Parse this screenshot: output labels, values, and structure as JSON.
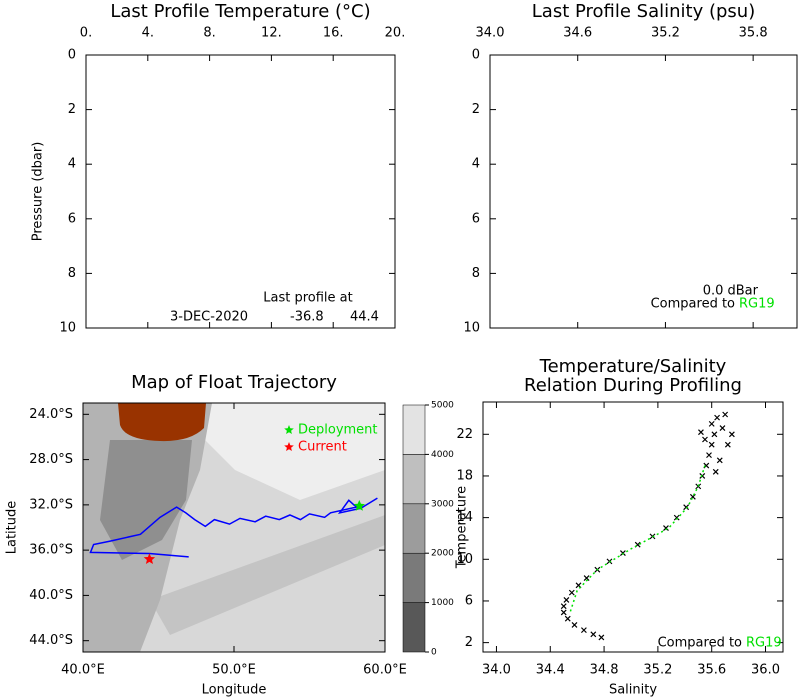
{
  "chart_data": [
    {
      "type": "profile",
      "title": "Last Profile Temperature (°C)",
      "ylabel": "Pressure (dbar)",
      "xlim": [
        0,
        20
      ],
      "xticks": [
        {
          "value": 0,
          "label": "0."
        },
        {
          "value": 4,
          "label": "4."
        },
        {
          "value": 8,
          "label": "8."
        },
        {
          "value": 12,
          "label": "12."
        },
        {
          "value": 16,
          "label": "16."
        },
        {
          "value": 20,
          "label": "20."
        }
      ],
      "ylim": [
        0,
        10
      ],
      "invert_y": true,
      "yticks": [
        0,
        2,
        4,
        6,
        8,
        10
      ],
      "annotations": [
        {
          "text": "Last profile at"
        },
        {
          "text": "3-DEC-2020"
        },
        {
          "text": -36.8
        },
        {
          "text": 44.4
        }
      ]
    },
    {
      "type": "profile",
      "title": "Last Profile Salinity (psu)",
      "xlim": [
        34.0,
        36.1
      ],
      "xticks": [
        {
          "value": 34.0,
          "label": "34.0"
        },
        34.6,
        35.2,
        35.8
      ],
      "ylim": [
        0,
        10
      ],
      "invert_y": true,
      "yticks": [
        0,
        2,
        4,
        6,
        8,
        10
      ],
      "annotations": [
        {
          "text": "0.0 dBar"
        },
        {
          "text": "Compared to"
        },
        {
          "text": "RG19",
          "color": "#00e000"
        }
      ]
    },
    {
      "type": "map",
      "title": "Map of Float Trajectory",
      "xlabel": "Longitude",
      "ylabel": "Latitude",
      "xlim": [
        40,
        60
      ],
      "xticks": [
        {
          "value": 40,
          "label": "40.0°E"
        },
        {
          "value": 50,
          "label": "50.0°E"
        },
        {
          "value": 60,
          "label": "60.0°E"
        }
      ],
      "ylim": [
        -45,
        -23
      ],
      "yticks": [
        {
          "value": -24,
          "label": "24.0°S"
        },
        {
          "value": -28,
          "label": "28.0°S"
        },
        {
          "value": -32,
          "label": "32.0°S"
        },
        {
          "value": -36,
          "label": "36.0°S"
        },
        {
          "value": -40,
          "label": "40.0°S"
        },
        {
          "value": -44,
          "label": "44.0°S"
        }
      ],
      "trajectory": {
        "color": "#0000ff",
        "x": [
          59.5,
          58.4,
          57.0,
          57.6,
          58.1,
          56.4,
          56.0,
          55.0,
          54.4,
          53.7,
          53.0,
          52.1,
          51.4,
          50.4,
          49.7,
          48.7,
          48.1,
          47.4,
          46.8,
          46.2,
          45.1,
          43.8,
          41.8,
          40.7,
          40.5,
          44.4,
          47.0
        ],
        "y": [
          -31.4,
          -32.3,
          -32.7,
          -31.6,
          -32.2,
          -32.7,
          -33.1,
          -32.8,
          -33.3,
          -32.9,
          -33.3,
          -33.0,
          -33.5,
          -33.2,
          -33.7,
          -33.3,
          -33.9,
          -33.3,
          -32.7,
          -32.2,
          -33.1,
          -34.6,
          -35.2,
          -35.5,
          -36.2,
          -36.3,
          -36.6
        ]
      },
      "markers": [
        {
          "name": "Deployment",
          "color": "#00e000",
          "x": 58.3,
          "y": -32.1
        },
        {
          "name": "Current",
          "color": "#ff0000",
          "x": 44.4,
          "y": -36.8
        }
      ],
      "colorbar": {
        "levels": [
          0,
          1000,
          2000,
          3000,
          4000,
          5000
        ],
        "colors": [
          "#585858",
          "#7a7a7a",
          "#9c9c9c",
          "#bfbfbf",
          "#e3e3e3"
        ]
      }
    },
    {
      "type": "scatter",
      "title": [
        "Temperature/Salinity",
        "Relation During Profiling"
      ],
      "xlabel": "Salinity",
      "ylabel": "Temperature",
      "xlim": [
        33.9,
        36.13
      ],
      "xticks": [
        {
          "value": 34.0,
          "label": "34.0"
        },
        34.4,
        34.8,
        35.2,
        35.6,
        {
          "value": 36.0,
          "label": "36.0"
        }
      ],
      "ylim": [
        1.1,
        25.1
      ],
      "yticks": [
        2,
        6,
        10,
        14,
        18,
        22
      ],
      "series": [
        {
          "color": "#000000",
          "marker": "x",
          "x": [
            34.78,
            34.72,
            34.65,
            34.58,
            34.53,
            34.5,
            34.5,
            34.52,
            34.56,
            34.61,
            34.67,
            34.75,
            34.84,
            34.94,
            35.05,
            35.16,
            35.26,
            35.34,
            35.41,
            35.46,
            35.5,
            35.53,
            35.56,
            35.58,
            35.6,
            35.62,
            35.6,
            35.64,
            35.68,
            35.55,
            35.72,
            35.66,
            35.52,
            35.7,
            35.63,
            35.75
          ],
          "y": [
            2.5,
            2.8,
            3.2,
            3.7,
            4.3,
            4.9,
            5.5,
            6.1,
            6.8,
            7.5,
            8.2,
            9.0,
            9.8,
            10.6,
            11.4,
            12.2,
            13.0,
            14.0,
            15.0,
            16.0,
            17.0,
            18.0,
            19.0,
            20.0,
            21.0,
            22.0,
            23.0,
            23.6,
            22.6,
            21.5,
            21.0,
            19.5,
            22.2,
            23.9,
            18.4,
            22.0
          ]
        },
        {
          "color": "#00e000",
          "marker": "line",
          "x": [
            34.55,
            34.6,
            34.75,
            35.0,
            35.28,
            35.42,
            35.5,
            35.55
          ],
          "y": [
            5.0,
            7.0,
            9.0,
            11.0,
            13.0,
            15.0,
            17.0,
            19.0
          ]
        }
      ],
      "annotations": [
        {
          "text": "Compared to"
        },
        {
          "text": "RG19",
          "color": "#00e000"
        }
      ]
    }
  ]
}
